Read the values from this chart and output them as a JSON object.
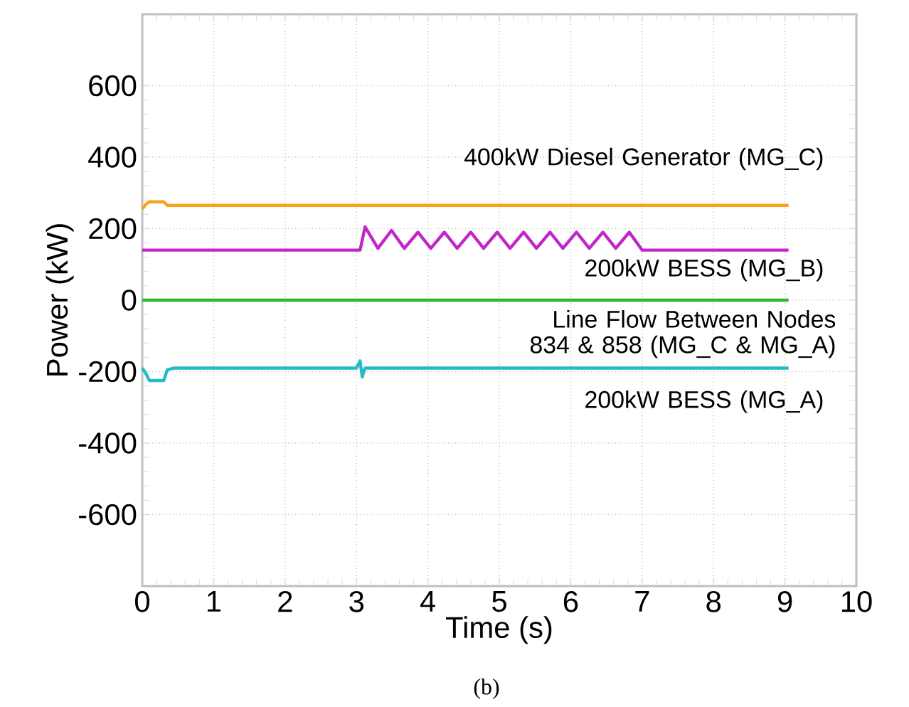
{
  "chart_data": {
    "type": "line",
    "xlabel": "Time (s)",
    "ylabel": "Power (kW)",
    "xlim": [
      0,
      10
    ],
    "ylim": [
      -800,
      800
    ],
    "xticks": [
      0,
      1,
      2,
      3,
      4,
      5,
      6,
      7,
      8,
      9,
      10
    ],
    "yticks": [
      -600,
      -400,
      -200,
      0,
      200,
      400,
      600
    ],
    "grid": true,
    "legend": false,
    "marker": "none",
    "line_style": "solid",
    "annotations": [
      "(b)"
    ],
    "series": [
      {
        "name": "400kW Diesel Generator (MG_C)",
        "color": "#f7a21b",
        "x": [
          0,
          0.05,
          0.1,
          0.3,
          0.35,
          1,
          3,
          5,
          7,
          9.05
        ],
        "values": [
          255,
          268,
          275,
          275,
          265,
          265,
          265,
          265,
          265,
          265
        ]
      },
      {
        "name": "200kW BESS (MG_B)",
        "color": "#c026c8",
        "x": [
          0,
          1,
          2,
          3.05,
          3.12,
          3.3,
          3.49,
          3.67,
          3.86,
          4.04,
          4.23,
          4.41,
          4.6,
          4.78,
          4.97,
          5.15,
          5.34,
          5.52,
          5.71,
          5.89,
          6.08,
          6.26,
          6.45,
          6.63,
          6.82,
          7.0,
          8,
          9.05
        ],
        "values": [
          140,
          140,
          140,
          140,
          205,
          145,
          195,
          145,
          190,
          145,
          190,
          145,
          190,
          145,
          190,
          145,
          190,
          145,
          190,
          145,
          190,
          145,
          190,
          145,
          190,
          140,
          140,
          140
        ]
      },
      {
        "name": "Line Flow Between Nodes 834 & 858 (MG_C & MG_A)",
        "color": "#2db82d",
        "x": [
          0,
          1,
          3,
          5,
          7,
          9.05
        ],
        "values": [
          0,
          0,
          0,
          0,
          0,
          0
        ]
      },
      {
        "name": "200kW BESS (MG_A)",
        "color": "#22bcc4",
        "x": [
          0,
          0.05,
          0.1,
          0.3,
          0.35,
          0.45,
          3.0,
          3.05,
          3.08,
          3.12,
          5,
          7,
          9.05
        ],
        "values": [
          -190,
          -205,
          -225,
          -225,
          -195,
          -190,
          -190,
          -170,
          -215,
          -190,
          -190,
          -190,
          -190
        ]
      }
    ]
  }
}
